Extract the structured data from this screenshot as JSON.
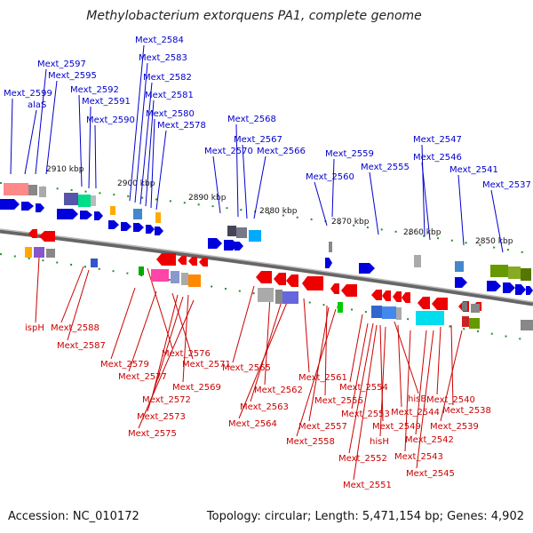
{
  "title": "Methylobacterium extorquens PA1, complete genome",
  "footer": {
    "accession": "Accession: NC_010172",
    "topology": "Topology: circular; Length: 5,471,154 bp; Genes: 4,902"
  },
  "colors": {
    "forward": "#0000cc",
    "reverse": "#cc0000",
    "backbone": "#888888",
    "feature_line": "#2a8a2a"
  },
  "ticks": [
    "2910 kbp",
    "2900 kbp",
    "2890 kbp",
    "2880 kbp",
    "2870 kbp",
    "2860 kbp",
    "2850 kbp"
  ],
  "forward_labels": [
    "Mext_2599",
    "alaS",
    "Mext_2597",
    "Mext_2595",
    "Mext_2592",
    "Mext_2591",
    "Mext_2590",
    "Mext_2584",
    "Mext_2583",
    "Mext_2582",
    "Mext_2581",
    "Mext_2580",
    "Mext_2578",
    "Mext_2568",
    "Mext_2567",
    "Mext_2570",
    "Mext_2566",
    "Mext_2559",
    "Mext_2560",
    "Mext_2555",
    "Mext_2547",
    "Mext_2546",
    "Mext_2541",
    "Mext_2537"
  ],
  "reverse_labels": [
    "ispH",
    "Mext_2588",
    "Mext_2587",
    "Mext_2576",
    "Mext_2579",
    "Mext_2577",
    "Mext_2571",
    "Mext_2572",
    "Mext_2569",
    "Mext_2573",
    "Mext_2575",
    "Mext_2565",
    "Mext_2561",
    "Mext_2562",
    "Mext_2563",
    "Mext_2564",
    "Mext_2554",
    "Mext_2556",
    "hisB",
    "Mext_2553",
    "Mext_2544",
    "Mext_2540",
    "Mext_2538",
    "Mext_2557",
    "Mext_2549",
    "Mext_2539",
    "Mext_2558",
    "hisH",
    "Mext_2542",
    "Mext_2552",
    "Mext_2543",
    "Mext_2545",
    "Mext_2551"
  ]
}
